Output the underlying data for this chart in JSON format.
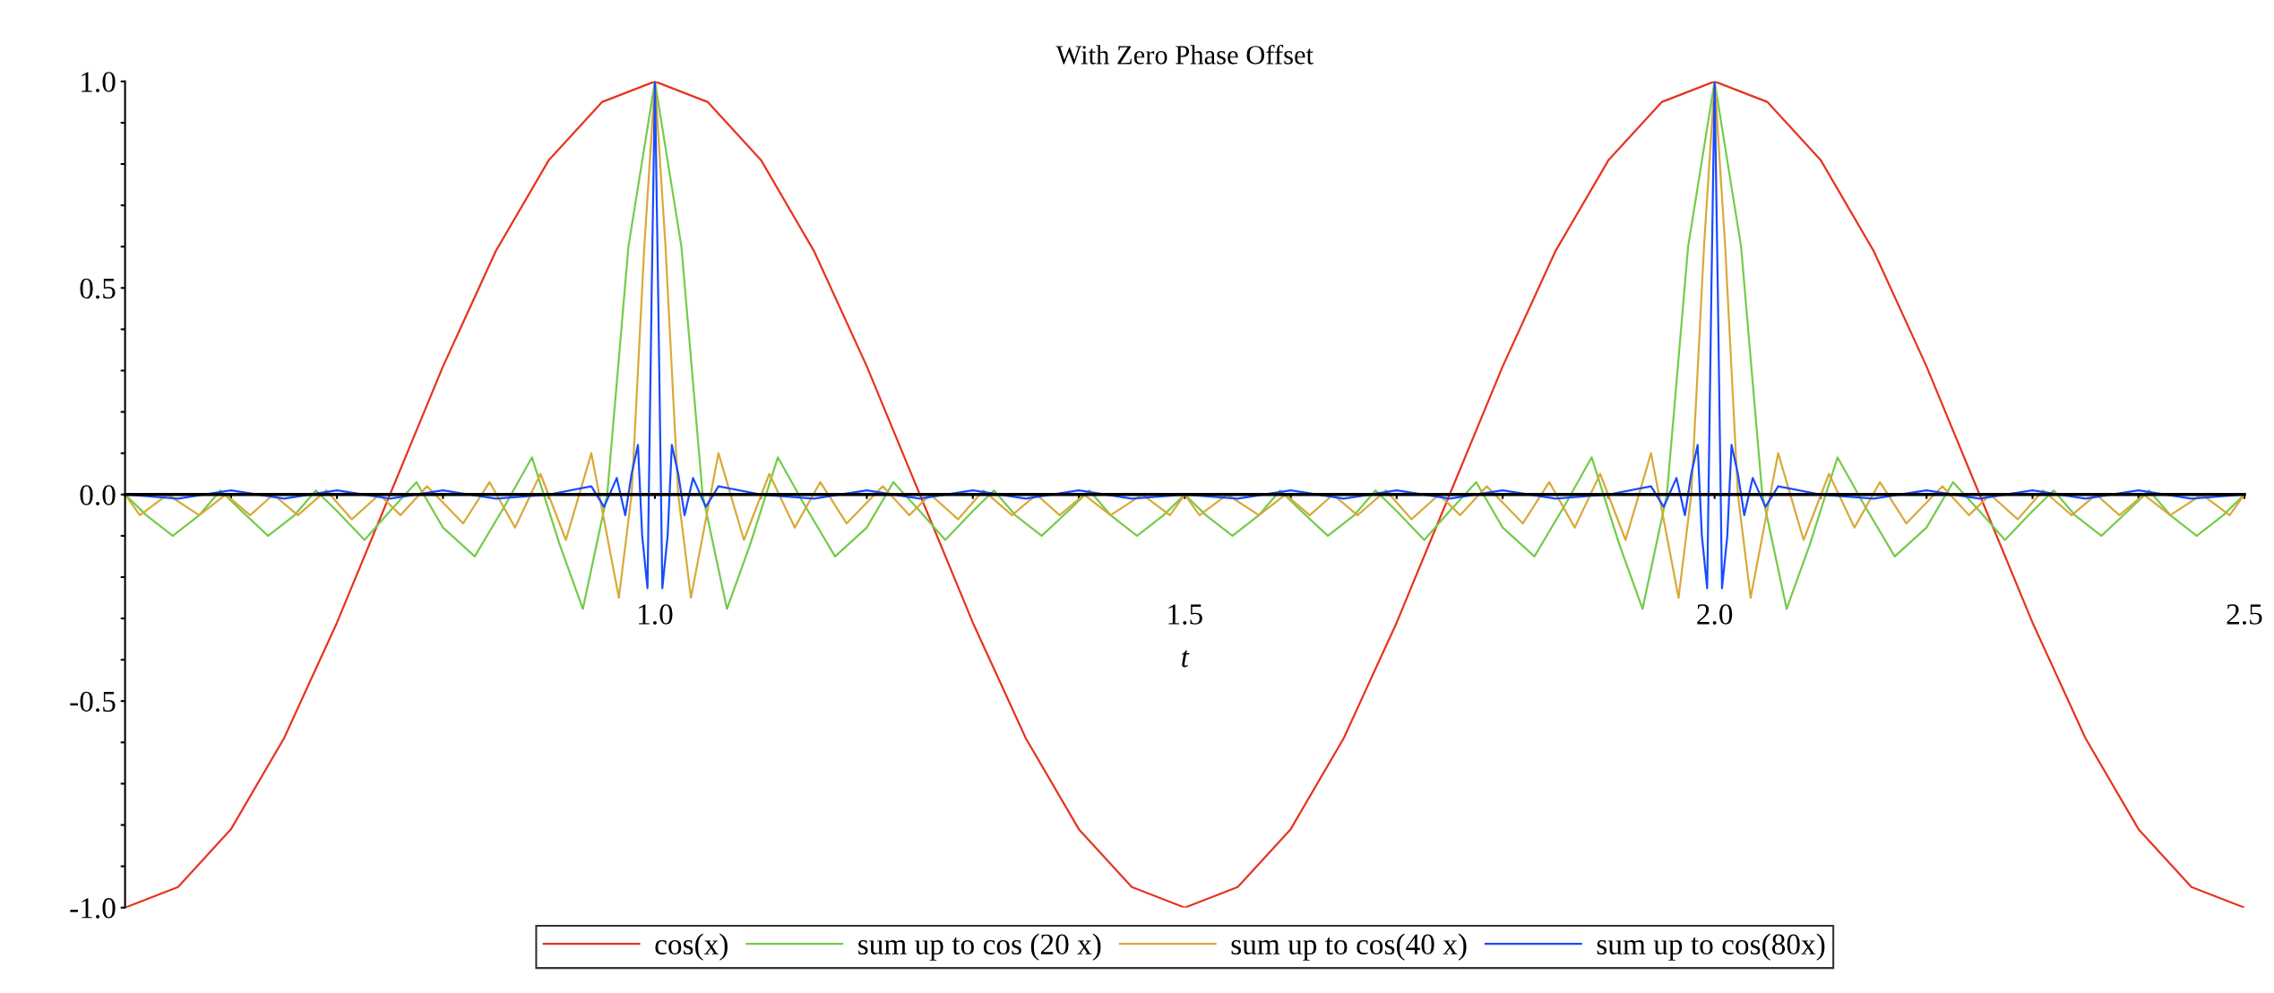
{
  "chart_data": {
    "type": "line",
    "title": "With Zero Phase Offset",
    "xlabel": "t",
    "xlim": [
      0.5,
      2.5
    ],
    "ylim": [
      -1.0,
      1.0
    ],
    "xticks": [
      {
        "value": 0.6,
        "label": null
      },
      {
        "value": 0.7,
        "label": null
      },
      {
        "value": 0.8,
        "label": null
      },
      {
        "value": 0.9,
        "label": null
      },
      {
        "value": 1.0,
        "label": "1.0"
      },
      {
        "value": 1.1,
        "label": null
      },
      {
        "value": 1.2,
        "label": null
      },
      {
        "value": 1.3,
        "label": null
      },
      {
        "value": 1.4,
        "label": null
      },
      {
        "value": 1.5,
        "label": "1.5"
      },
      {
        "value": 1.6,
        "label": null
      },
      {
        "value": 1.7,
        "label": null
      },
      {
        "value": 1.8,
        "label": null
      },
      {
        "value": 1.9,
        "label": null
      },
      {
        "value": 2.0,
        "label": "2.0"
      },
      {
        "value": 2.1,
        "label": null
      },
      {
        "value": 2.2,
        "label": null
      },
      {
        "value": 2.3,
        "label": null
      },
      {
        "value": 2.4,
        "label": null
      },
      {
        "value": 2.5,
        "label": "2.5"
      }
    ],
    "yticks": [
      {
        "value": -1.0,
        "label": "-1.0"
      },
      {
        "value": -0.9,
        "label": null
      },
      {
        "value": -0.8,
        "label": null
      },
      {
        "value": -0.7,
        "label": null
      },
      {
        "value": -0.6,
        "label": null
      },
      {
        "value": -0.5,
        "label": "-0.5"
      },
      {
        "value": -0.4,
        "label": null
      },
      {
        "value": -0.3,
        "label": null
      },
      {
        "value": -0.2,
        "label": null
      },
      {
        "value": -0.1,
        "label": null
      },
      {
        "value": 0.0,
        "label": "0.0"
      },
      {
        "value": 0.1,
        "label": null
      },
      {
        "value": 0.2,
        "label": null
      },
      {
        "value": 0.3,
        "label": null
      },
      {
        "value": 0.4,
        "label": null
      },
      {
        "value": 0.5,
        "label": "0.5"
      },
      {
        "value": 0.6,
        "label": null
      },
      {
        "value": 0.7,
        "label": null
      },
      {
        "value": 0.8,
        "label": null
      },
      {
        "value": 0.9,
        "label": null
      },
      {
        "value": 1.0,
        "label": "1.0"
      }
    ],
    "legend": "bottom",
    "marker": "none",
    "line_style": "solid",
    "series": [
      {
        "name": "cos(x)",
        "color": "#e8321e",
        "x": [
          0.5,
          0.55,
          0.6,
          0.65,
          0.7,
          0.75,
          0.8,
          0.85,
          0.9,
          0.95,
          1.0,
          1.05,
          1.1,
          1.15,
          1.2,
          1.25,
          1.3,
          1.35,
          1.4,
          1.45,
          1.5,
          1.55,
          1.6,
          1.65,
          1.7,
          1.75,
          1.8,
          1.85,
          1.9,
          1.95,
          2.0,
          2.05,
          2.1,
          2.15,
          2.2,
          2.25,
          2.3,
          2.35,
          2.4,
          2.45,
          2.5
        ],
        "values": [
          -1,
          -0.95,
          -0.81,
          -0.59,
          -0.31,
          0,
          0.31,
          0.59,
          0.81,
          0.95,
          1,
          0.95,
          0.81,
          0.59,
          0.31,
          0,
          -0.31,
          -0.59,
          -0.81,
          -0.95,
          -1,
          -0.95,
          -0.81,
          -0.59,
          -0.31,
          0,
          0.31,
          0.59,
          0.81,
          0.95,
          1,
          0.95,
          0.81,
          0.59,
          0.31,
          0,
          -0.31,
          -0.59,
          -0.81,
          -0.95,
          -1
        ]
      },
      {
        "name": "sum up to cos (20 x)",
        "color": "#73cc4a",
        "x": [
          0.5,
          0.52,
          0.545,
          0.57,
          0.59,
          0.61,
          0.635,
          0.66,
          0.68,
          0.7,
          0.726,
          0.75,
          0.775,
          0.8,
          0.83,
          0.86,
          0.884,
          0.91,
          0.932,
          0.955,
          0.975,
          1.0,
          1.025,
          1.045,
          1.068,
          1.09,
          1.116,
          1.14,
          1.17,
          1.2,
          1.225,
          1.25,
          1.274,
          1.3,
          1.32,
          1.34,
          1.365,
          1.39,
          1.41,
          1.43,
          1.455,
          1.48,
          1.5,
          1.52,
          1.545,
          1.57,
          1.59,
          1.61,
          1.635,
          1.66,
          1.68,
          1.7,
          1.726,
          1.75,
          1.775,
          1.8,
          1.83,
          1.86,
          1.884,
          1.91,
          1.932,
          1.955,
          1.975,
          2.0,
          2.025,
          2.045,
          2.068,
          2.09,
          2.116,
          2.14,
          2.17,
          2.2,
          2.225,
          2.25,
          2.274,
          2.3,
          2.32,
          2.34,
          2.365,
          2.39,
          2.41,
          2.43,
          2.455,
          2.48,
          2.5
        ],
        "values": [
          0,
          -0.05,
          -0.1,
          -0.05,
          0.01,
          -0.04,
          -0.1,
          -0.05,
          0.01,
          -0.04,
          -0.11,
          -0.04,
          0.03,
          -0.08,
          -0.15,
          -0.02,
          0.09,
          -0.12,
          -0.277,
          0,
          0.6,
          1,
          0.6,
          0,
          -0.277,
          -0.12,
          0.09,
          -0.02,
          -0.15,
          -0.08,
          0.03,
          -0.04,
          -0.11,
          -0.04,
          0.01,
          -0.05,
          -0.1,
          -0.04,
          0.01,
          -0.05,
          -0.1,
          -0.05,
          0,
          -0.05,
          -0.1,
          -0.05,
          0.01,
          -0.04,
          -0.1,
          -0.05,
          0.01,
          -0.04,
          -0.11,
          -0.04,
          0.03,
          -0.08,
          -0.15,
          -0.02,
          0.09,
          -0.12,
          -0.277,
          0,
          0.6,
          1,
          0.6,
          0,
          -0.277,
          -0.12,
          0.09,
          -0.02,
          -0.15,
          -0.08,
          0.03,
          -0.04,
          -0.11,
          -0.04,
          0.01,
          -0.05,
          -0.1,
          -0.04,
          0.01,
          -0.05,
          -0.1,
          -0.05,
          0
        ]
      },
      {
        "name": "sum up to cos(40 x)",
        "color": "#d9a93a",
        "x": [
          0.5,
          0.514,
          0.54,
          0.57,
          0.595,
          0.618,
          0.64,
          0.663,
          0.69,
          0.714,
          0.74,
          0.76,
          0.785,
          0.819,
          0.844,
          0.868,
          0.892,
          0.916,
          0.94,
          0.966,
          0.978,
          0.99,
          1.0,
          1.01,
          1.022,
          1.034,
          1.06,
          1.084,
          1.108,
          1.132,
          1.156,
          1.181,
          1.215,
          1.24,
          1.26,
          1.286,
          1.31,
          1.337,
          1.36,
          1.382,
          1.405,
          1.43,
          1.46,
          1.486,
          1.5,
          1.514,
          1.54,
          1.57,
          1.595,
          1.618,
          1.64,
          1.663,
          1.69,
          1.714,
          1.74,
          1.76,
          1.785,
          1.819,
          1.844,
          1.868,
          1.892,
          1.916,
          1.94,
          1.966,
          1.978,
          1.99,
          2.0,
          2.01,
          2.022,
          2.034,
          2.06,
          2.084,
          2.108,
          2.132,
          2.156,
          2.181,
          2.215,
          2.24,
          2.26,
          2.286,
          2.31,
          2.337,
          2.36,
          2.382,
          2.405,
          2.43,
          2.46,
          2.486,
          2.5
        ],
        "values": [
          0,
          -0.05,
          0,
          -0.05,
          0,
          -0.05,
          0,
          -0.05,
          0.01,
          -0.06,
          0,
          -0.05,
          0.02,
          -0.07,
          0.03,
          -0.08,
          0.05,
          -0.11,
          0.1,
          -0.25,
          0,
          0.6,
          1,
          0.6,
          0,
          -0.25,
          0.1,
          -0.11,
          0.05,
          -0.08,
          0.03,
          -0.07,
          0.02,
          -0.05,
          0,
          -0.06,
          0.01,
          -0.05,
          0,
          -0.05,
          0,
          -0.05,
          0,
          -0.05,
          0,
          -0.05,
          0,
          -0.05,
          0,
          -0.05,
          0,
          -0.05,
          0.01,
          -0.06,
          0,
          -0.05,
          0.02,
          -0.07,
          0.03,
          -0.08,
          0.05,
          -0.11,
          0.1,
          -0.25,
          0,
          0.6,
          1,
          0.6,
          0,
          -0.25,
          0.1,
          -0.11,
          0.05,
          -0.08,
          0.03,
          -0.07,
          0.02,
          -0.05,
          0,
          -0.06,
          0.01,
          -0.05,
          0,
          -0.05,
          0,
          -0.05,
          0,
          -0.05,
          0
        ]
      },
      {
        "name": "sum up to cos(80x)",
        "color": "#1a4bff",
        "x": [
          0.5,
          0.55,
          0.6,
          0.65,
          0.7,
          0.75,
          0.8,
          0.85,
          0.9,
          0.94,
          0.952,
          0.964,
          0.972,
          0.978,
          0.984,
          0.988,
          0.993,
          0.997,
          1.0,
          1.003,
          1.007,
          1.012,
          1.016,
          1.022,
          1.028,
          1.036,
          1.048,
          1.06,
          1.1,
          1.15,
          1.2,
          1.25,
          1.3,
          1.35,
          1.4,
          1.45,
          1.5,
          1.55,
          1.6,
          1.65,
          1.7,
          1.75,
          1.8,
          1.85,
          1.9,
          1.94,
          1.952,
          1.964,
          1.972,
          1.978,
          1.984,
          1.988,
          1.993,
          1.997,
          2.0,
          2.003,
          2.007,
          2.012,
          2.016,
          2.022,
          2.028,
          2.036,
          2.048,
          2.06,
          2.1,
          2.15,
          2.2,
          2.25,
          2.3,
          2.35,
          2.4,
          2.45,
          2.5
        ],
        "values": [
          0,
          -0.01,
          0.01,
          -0.01,
          0.01,
          -0.01,
          0.01,
          -0.01,
          0,
          0.02,
          -0.03,
          0.04,
          -0.05,
          0.05,
          0.12,
          -0.1,
          -0.227,
          0.5,
          1,
          0.5,
          -0.227,
          -0.1,
          0.12,
          0.05,
          -0.05,
          0.04,
          -0.03,
          0.02,
          0,
          -0.01,
          0.01,
          -0.01,
          0.01,
          -0.01,
          0.01,
          -0.01,
          0,
          -0.01,
          0.01,
          -0.01,
          0.01,
          -0.01,
          0.01,
          -0.01,
          0,
          0.02,
          -0.03,
          0.04,
          -0.05,
          0.05,
          0.12,
          -0.1,
          -0.227,
          0.5,
          1,
          0.5,
          -0.227,
          -0.1,
          0.12,
          0.05,
          -0.05,
          0.04,
          -0.03,
          0.02,
          0,
          -0.01,
          0.01,
          -0.01,
          0.01,
          -0.01,
          0.01,
          -0.01,
          0
        ]
      }
    ]
  }
}
